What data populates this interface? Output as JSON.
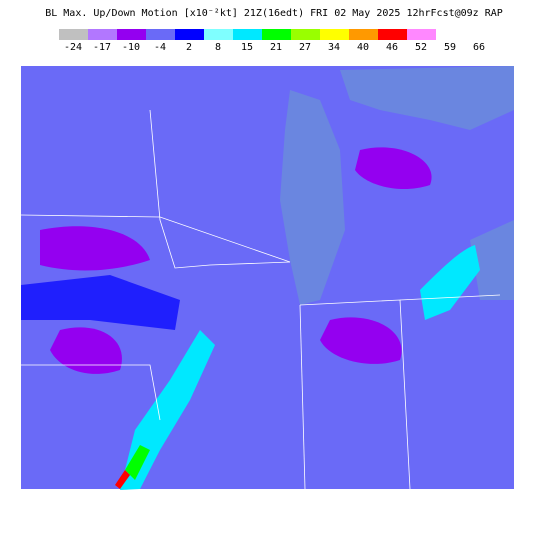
{
  "header": {
    "title": "BL Max. Up/Down Motion [x10⁻²kt] 21Z(16edt) FRI 02 May 2025 12hrFcst@09z RAP"
  },
  "legend": {
    "colors": [
      "#c0c0c0",
      "#b277ff",
      "#9400f0",
      "#6a6af7",
      "#0000ff",
      "#7fffff",
      "#00e8ff",
      "#00ff00",
      "#99ff00",
      "#ffff00",
      "#ff9900",
      "#ff0000",
      "#ff88ff"
    ],
    "labels": [
      -24,
      -17,
      -10,
      -4,
      2,
      8,
      15,
      21,
      27,
      34,
      40,
      46,
      52,
      59,
      66
    ]
  }
}
